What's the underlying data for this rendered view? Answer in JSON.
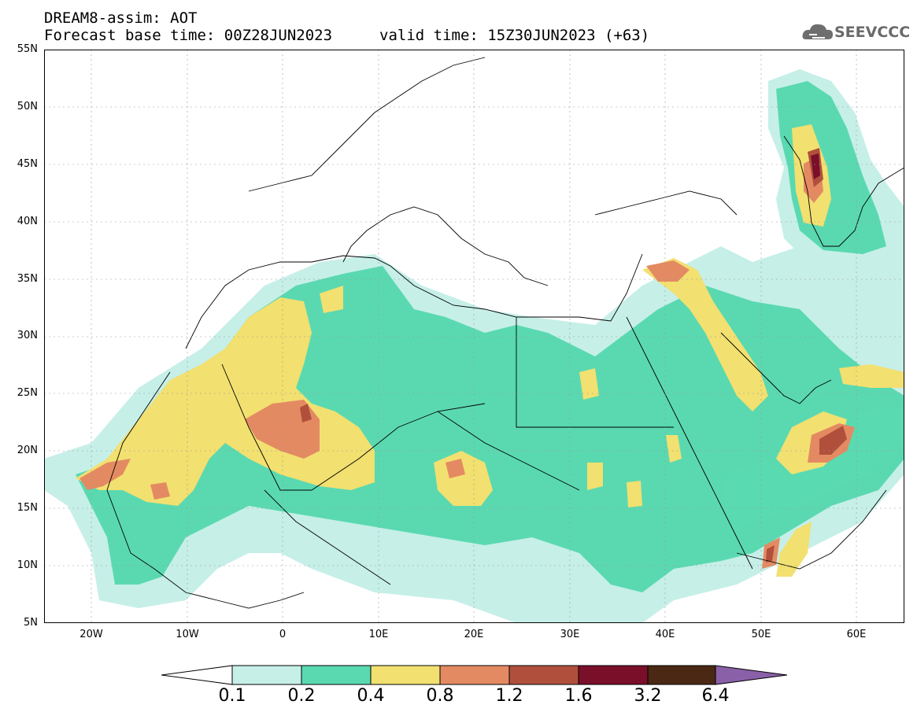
{
  "title": {
    "line1": "DREAM8-assim: AOT",
    "base": "Forecast base time: 00Z28JUN2023",
    "valid": "valid time: 15Z30JUN2023 (+63)"
  },
  "logo": {
    "text": "SEEVCCC",
    "icon": "cloud-icon"
  },
  "map": {
    "lon_range": [
      -25,
      65
    ],
    "lat_range": [
      5,
      55
    ],
    "lat_labels": [
      "55N",
      "50N",
      "45N",
      "40N",
      "35N",
      "30N",
      "25N",
      "20N",
      "15N",
      "10N",
      "5N"
    ],
    "lon_labels": [
      "20W",
      "10W",
      "0",
      "10E",
      "20E",
      "30E",
      "40E",
      "50E",
      "60E"
    ]
  },
  "colorbar": {
    "levels": [
      "0.1",
      "0.2",
      "0.4",
      "0.8",
      "1.2",
      "1.6",
      "3.2",
      "6.4"
    ],
    "colors": [
      "#ffffff",
      "#c6efe8",
      "#5ad9b0",
      "#f2e070",
      "#e48a62",
      "#b0503c",
      "#7a0f2a",
      "#4a2814",
      "#8a60a8"
    ]
  }
}
